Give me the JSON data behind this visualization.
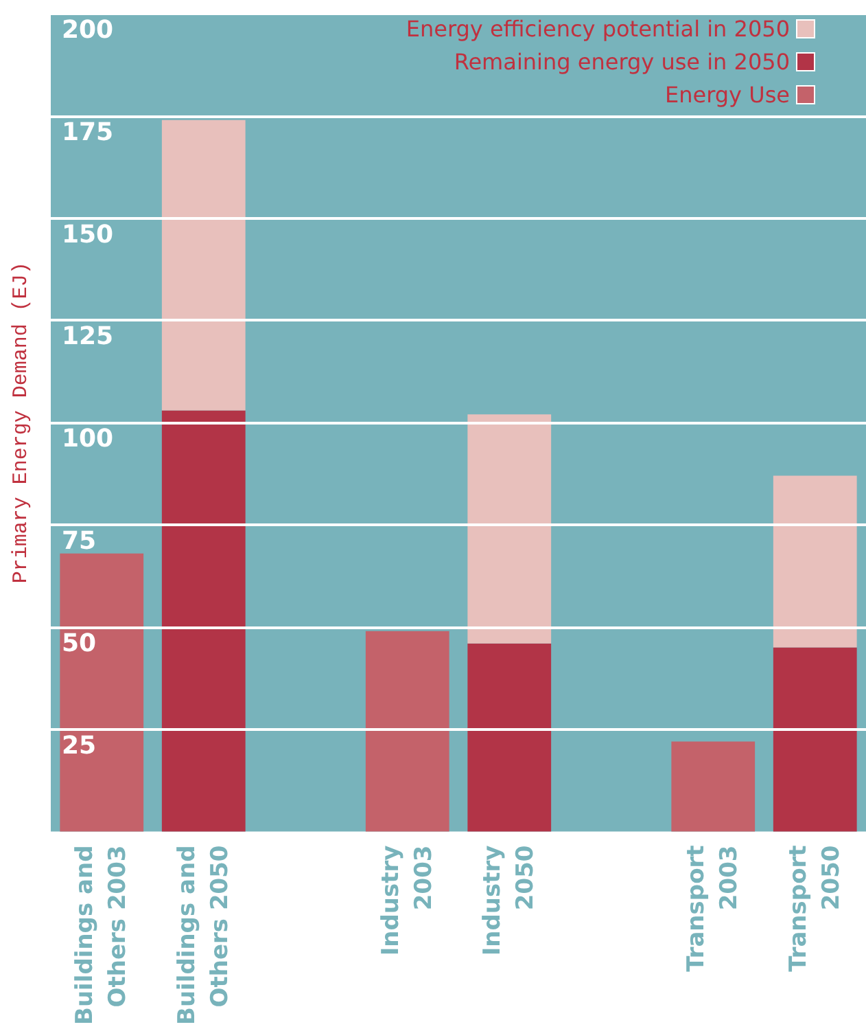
{
  "chart_data": {
    "type": "bar",
    "stacked": true,
    "ylabel": "Primary Energy Demand (EJ)",
    "categories": [
      "Buildings and Others 2003",
      "Buildings and Others 2050",
      null,
      "Industry 2003",
      "Industry 2050",
      null,
      "Transport 2003",
      "Transport 2050"
    ],
    "series": [
      {
        "name": "Energy Use",
        "color": "#c4626a",
        "values": [
          68,
          null,
          null,
          49,
          null,
          null,
          22,
          null
        ]
      },
      {
        "name": "Remaining energy use in 2050",
        "color": "#b23447",
        "values": [
          null,
          103,
          null,
          null,
          46,
          null,
          null,
          45
        ]
      },
      {
        "name": "Energy efficiency potential in 2050",
        "color": "#e8c0bc",
        "values": [
          null,
          71,
          null,
          null,
          56,
          null,
          null,
          42
        ]
      }
    ],
    "ylim": [
      0,
      200
    ],
    "yticks": [
      25,
      50,
      75,
      100,
      125,
      150,
      175,
      200
    ],
    "grid": "y",
    "legend": "top right"
  }
}
